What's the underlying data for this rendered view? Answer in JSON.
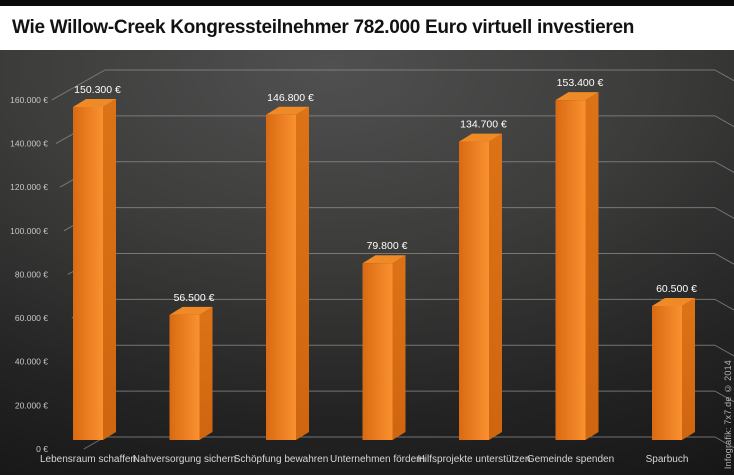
{
  "header": {
    "title": "Wie Willow-Creek Kongressteilnehmer 782.000 Euro virtuell investieren"
  },
  "credit": "Infografik: 7x7.de © 2014",
  "chart_data": {
    "type": "bar",
    "style": "3d-bar",
    "title": "Wie Willow-Creek Kongressteilnehmer 782.000 Euro virtuell investieren",
    "total_shown_in_title": 782000,
    "categories": [
      "Lebensraum schaffen",
      "Nahversorgung sichern",
      "Schöpfung bewahren",
      "Unternehmen fördern",
      "Hilfsprojekte unterstützen",
      "Gemeinde spenden",
      "Sparbuch"
    ],
    "values": [
      150300,
      56500,
      146800,
      79800,
      134700,
      153400,
      60500
    ],
    "value_labels": [
      "150.300 €",
      "56.500 €",
      "146.800 €",
      "79.800 €",
      "134.700 €",
      "153.400 €",
      "60.500 €"
    ],
    "xlabel": "",
    "ylabel": "",
    "ylim": [
      0,
      160000
    ],
    "ytick_step": 20000,
    "ytick_labels": [
      "0 €",
      "20.000 €",
      "40.000 €",
      "60.000 €",
      "80.000 €",
      "100.000 €",
      "120.000 €",
      "140.000 €",
      "160.000 €"
    ],
    "grid": true,
    "legend": false,
    "colors": {
      "bar_front_dark": "#d96a12",
      "bar_front_light": "#fa9130",
      "bar_top": "#f08a26",
      "bar_side": "#cf6610",
      "background_center": "#505050",
      "background_edge": "#141414",
      "gridline": "#8d8d8d",
      "label": "#ffffff"
    }
  }
}
